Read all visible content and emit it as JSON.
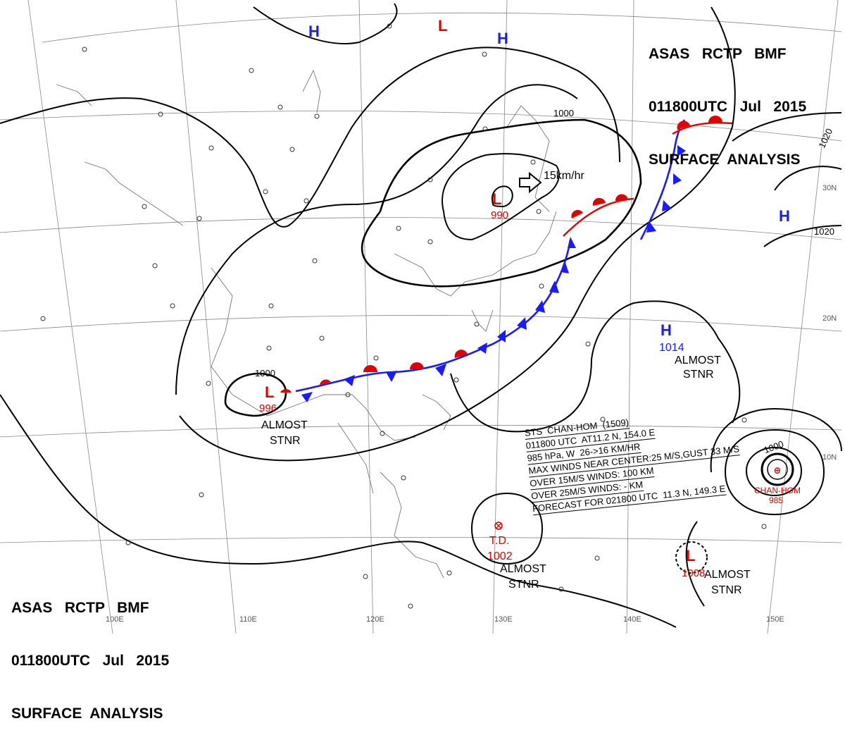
{
  "header_top": {
    "line1": "ASAS   RCTP   BMF",
    "line2": "011800UTC   Jul   2015",
    "line3": "SURFACE  ANALYSIS"
  },
  "header_bottom": {
    "line1": "ASAS   RCTP   BMF",
    "line2": "011800UTC   Jul   2015",
    "line3": "SURFACE  ANALYSIS"
  },
  "pressure_systems": [
    {
      "type": "H",
      "color": "#1a1aff"
    },
    {
      "type": "H",
      "color": "#1a1aff"
    },
    {
      "type": "L",
      "color": "#e00000"
    },
    {
      "type": "L",
      "color": "#e00000",
      "value": "990"
    },
    {
      "type": "L",
      "color": "#e00000",
      "value": "996"
    },
    {
      "type": "H",
      "color": "#1a1aff",
      "value": "1014"
    },
    {
      "type": "H",
      "color": "#1a1aff"
    },
    {
      "type": "L",
      "color": "#e00000",
      "value": "1008"
    }
  ],
  "isobar_labels": [
    "1000",
    "1000",
    "1020",
    "1020",
    "1000"
  ],
  "stationary_notes": [
    "ALMOST",
    "STNR"
  ],
  "motion": "15km/hr",
  "td_label": {
    "name": "T.D.",
    "value": "1002"
  },
  "typhoon": {
    "name": "CHAN-HOM",
    "value": "985"
  },
  "storm_info": [
    "STS  CHAN-HOM  (1509)",
    "011800 UTC  AT11.2 N, 154.0 E",
    "985 hPa, W  26->16 KM/HR",
    "MAX WINDS NEAR CENTER:25 M/S,GUST 33 M/S",
    "OVER 15M/S WINDS: 100 KM",
    "OVER 25M/S WINDS: - KM",
    "FORECAST FOR 021800 UTC  11.3 N, 149.3 E"
  ],
  "lon_labels": [
    "100E",
    "110E",
    "120E",
    "130E",
    "140E",
    "150E"
  ],
  "lat_labels": [
    "30N",
    "20N",
    "10N"
  ],
  "colors": {
    "high": "#1a1aff",
    "low": "#e00000",
    "cold_front": "#1a1aff",
    "warm_front": "#e00000"
  }
}
